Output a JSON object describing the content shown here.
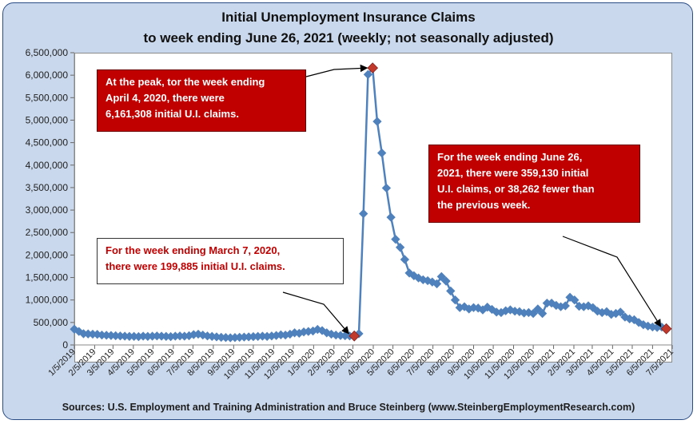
{
  "chart_data": {
    "type": "line",
    "title": "Initial Unemployment Insurance Claims",
    "subtitle": "to week ending June 26, 2021 (weekly; not seasonally adjusted)",
    "xlabel": "",
    "ylabel": "",
    "ylim": [
      0,
      6500000
    ],
    "y_ticks": [
      "0",
      "500,000",
      "1,000,000",
      "1,500,000",
      "2,000,000",
      "2,500,000",
      "3,000,000",
      "3,500,000",
      "4,000,000",
      "4,500,000",
      "5,000,000",
      "5,500,000",
      "6,000,000",
      "6,500,000"
    ],
    "x_ticks": [
      "1/5/2019",
      "2/5/2019",
      "3/5/2019",
      "4/5/2019",
      "5/5/2019",
      "6/5/2019",
      "7/5/2019",
      "8/5/2019",
      "9/5/2019",
      "10/5/2019",
      "11/5/2019",
      "12/5/2019",
      "1/5/2020",
      "2/5/2020",
      "3/5/2020",
      "4/5/2020",
      "5/5/2020",
      "6/5/2020",
      "7/5/2020",
      "8/5/2020",
      "9/5/2020",
      "10/5/2020",
      "11/5/2020",
      "12/5/2020",
      "1/5/2021",
      "2/5/2021",
      "3/5/2021",
      "4/5/2021",
      "5/5/2021",
      "6/5/2021",
      "7/5/2021"
    ],
    "x_range": [
      "2019-01-05",
      "2021-07-05"
    ],
    "grid": false,
    "legend": "none",
    "series": [
      {
        "color": "#4f81bd",
        "marker_color": "#4f81bd",
        "points": [
          [
            "2019-01-05",
            350000
          ],
          [
            "2019-01-12",
            300000
          ],
          [
            "2019-01-19",
            250000
          ],
          [
            "2019-01-26",
            245000
          ],
          [
            "2019-02-02",
            240000
          ],
          [
            "2019-02-09",
            235000
          ],
          [
            "2019-02-16",
            220000
          ],
          [
            "2019-02-23",
            215000
          ],
          [
            "2019-03-02",
            210000
          ],
          [
            "2019-03-09",
            205000
          ],
          [
            "2019-03-16",
            200000
          ],
          [
            "2019-03-23",
            195000
          ],
          [
            "2019-03-30",
            190000
          ],
          [
            "2019-04-06",
            190000
          ],
          [
            "2019-04-13",
            185000
          ],
          [
            "2019-04-20",
            195000
          ],
          [
            "2019-04-27",
            190000
          ],
          [
            "2019-05-04",
            195000
          ],
          [
            "2019-05-11",
            200000
          ],
          [
            "2019-05-18",
            195000
          ],
          [
            "2019-05-25",
            190000
          ],
          [
            "2019-06-01",
            185000
          ],
          [
            "2019-06-08",
            195000
          ],
          [
            "2019-06-15",
            200000
          ],
          [
            "2019-06-22",
            195000
          ],
          [
            "2019-06-29",
            205000
          ],
          [
            "2019-07-06",
            230000
          ],
          [
            "2019-07-13",
            240000
          ],
          [
            "2019-07-20",
            220000
          ],
          [
            "2019-07-27",
            200000
          ],
          [
            "2019-08-03",
            190000
          ],
          [
            "2019-08-10",
            180000
          ],
          [
            "2019-08-17",
            170000
          ],
          [
            "2019-08-24",
            165000
          ],
          [
            "2019-08-31",
            160000
          ],
          [
            "2019-09-07",
            165000
          ],
          [
            "2019-09-14",
            170000
          ],
          [
            "2019-09-21",
            175000
          ],
          [
            "2019-09-28",
            180000
          ],
          [
            "2019-10-05",
            185000
          ],
          [
            "2019-10-12",
            190000
          ],
          [
            "2019-10-19",
            195000
          ],
          [
            "2019-10-26",
            190000
          ],
          [
            "2019-11-02",
            200000
          ],
          [
            "2019-11-09",
            210000
          ],
          [
            "2019-11-16",
            225000
          ],
          [
            "2019-11-23",
            220000
          ],
          [
            "2019-11-30",
            240000
          ],
          [
            "2019-12-07",
            270000
          ],
          [
            "2019-12-14",
            260000
          ],
          [
            "2019-12-21",
            290000
          ],
          [
            "2019-12-28",
            300000
          ],
          [
            "2020-01-04",
            310000
          ],
          [
            "2020-01-11",
            345000
          ],
          [
            "2020-01-18",
            320000
          ],
          [
            "2020-01-25",
            270000
          ],
          [
            "2020-02-01",
            240000
          ],
          [
            "2020-02-08",
            220000
          ],
          [
            "2020-02-15",
            210000
          ],
          [
            "2020-02-22",
            205000
          ],
          [
            "2020-02-29",
            200000
          ],
          [
            "2020-03-07",
            199885
          ],
          [
            "2020-03-14",
            250000
          ],
          [
            "2020-03-21",
            2920000
          ],
          [
            "2020-03-28",
            6015000
          ],
          [
            "2020-04-04",
            6161308
          ],
          [
            "2020-04-11",
            4970000
          ],
          [
            "2020-04-18",
            4270000
          ],
          [
            "2020-04-25",
            3490000
          ],
          [
            "2020-05-02",
            2840000
          ],
          [
            "2020-05-09",
            2350000
          ],
          [
            "2020-05-16",
            2170000
          ],
          [
            "2020-05-23",
            1900000
          ],
          [
            "2020-05-30",
            1600000
          ],
          [
            "2020-06-06",
            1540000
          ],
          [
            "2020-06-13",
            1490000
          ],
          [
            "2020-06-20",
            1450000
          ],
          [
            "2020-06-27",
            1430000
          ],
          [
            "2020-07-04",
            1400000
          ],
          [
            "2020-07-11",
            1360000
          ],
          [
            "2020-07-18",
            1520000
          ],
          [
            "2020-07-25",
            1420000
          ],
          [
            "2020-08-01",
            1200000
          ],
          [
            "2020-08-08",
            1000000
          ],
          [
            "2020-08-15",
            830000
          ],
          [
            "2020-08-22",
            850000
          ],
          [
            "2020-08-29",
            800000
          ],
          [
            "2020-09-05",
            830000
          ],
          [
            "2020-09-12",
            820000
          ],
          [
            "2020-09-19",
            780000
          ],
          [
            "2020-09-26",
            840000
          ],
          [
            "2020-10-03",
            790000
          ],
          [
            "2020-10-10",
            730000
          ],
          [
            "2020-10-17",
            720000
          ],
          [
            "2020-10-24",
            760000
          ],
          [
            "2020-10-31",
            780000
          ],
          [
            "2020-11-07",
            750000
          ],
          [
            "2020-11-14",
            740000
          ],
          [
            "2020-11-21",
            710000
          ],
          [
            "2020-11-28",
            720000
          ],
          [
            "2020-12-05",
            700000
          ],
          [
            "2020-12-12",
            800000
          ],
          [
            "2020-12-19",
            700000
          ],
          [
            "2020-12-26",
            930000
          ],
          [
            "2021-01-02",
            930000
          ],
          [
            "2021-01-09",
            880000
          ],
          [
            "2021-01-16",
            850000
          ],
          [
            "2021-01-23",
            870000
          ],
          [
            "2021-01-30",
            1060000
          ],
          [
            "2021-02-06",
            1000000
          ],
          [
            "2021-02-13",
            860000
          ],
          [
            "2021-02-20",
            850000
          ],
          [
            "2021-02-27",
            870000
          ],
          [
            "2021-03-06",
            830000
          ],
          [
            "2021-03-13",
            750000
          ],
          [
            "2021-03-20",
            720000
          ],
          [
            "2021-03-27",
            740000
          ],
          [
            "2021-04-03",
            680000
          ],
          [
            "2021-04-10",
            700000
          ],
          [
            "2021-04-17",
            730000
          ],
          [
            "2021-04-24",
            620000
          ],
          [
            "2021-05-01",
            580000
          ],
          [
            "2021-05-08",
            560000
          ],
          [
            "2021-05-15",
            500000
          ],
          [
            "2021-05-22",
            450000
          ],
          [
            "2021-05-29",
            420000
          ],
          [
            "2021-06-05",
            400000
          ],
          [
            "2021-06-12",
            390000
          ],
          [
            "2021-06-19",
            397392
          ],
          [
            "2021-06-26",
            359130
          ]
        ]
      }
    ],
    "highlighted_points": [
      {
        "date": "2020-03-07",
        "value": 199885,
        "color": "#c0392b"
      },
      {
        "date": "2020-04-04",
        "value": 6161308,
        "color": "#c0392b"
      },
      {
        "date": "2021-06-26",
        "value": 359130,
        "color": "#c0392b"
      }
    ],
    "annotations": [
      {
        "id": "peak",
        "style": "red",
        "lines": [
          "At the peak, tor the week ending",
          "April 4, 2020, there were",
          "6,161,308 initial U.I. claims."
        ],
        "target_date": "2020-04-04",
        "target_value": 6161308
      },
      {
        "id": "march",
        "style": "white",
        "lines": [
          "For the week ending March 7, 2020,",
          "there were  199,885 initial U.I. claims."
        ],
        "target_date": "2020-03-07",
        "target_value": 199885
      },
      {
        "id": "june",
        "style": "red",
        "lines": [
          "For the week ending  June 26,",
          "2021, there were  359,130  initial",
          "U.I. claims, or 38,262 fewer than",
          "the previous week."
        ],
        "target_date": "2021-06-26",
        "target_value": 359130
      }
    ],
    "source": "Sources: U.S. Employment and Training Administration and Bruce Steinberg (www.SteinbergEmploymentResearch.com)"
  }
}
